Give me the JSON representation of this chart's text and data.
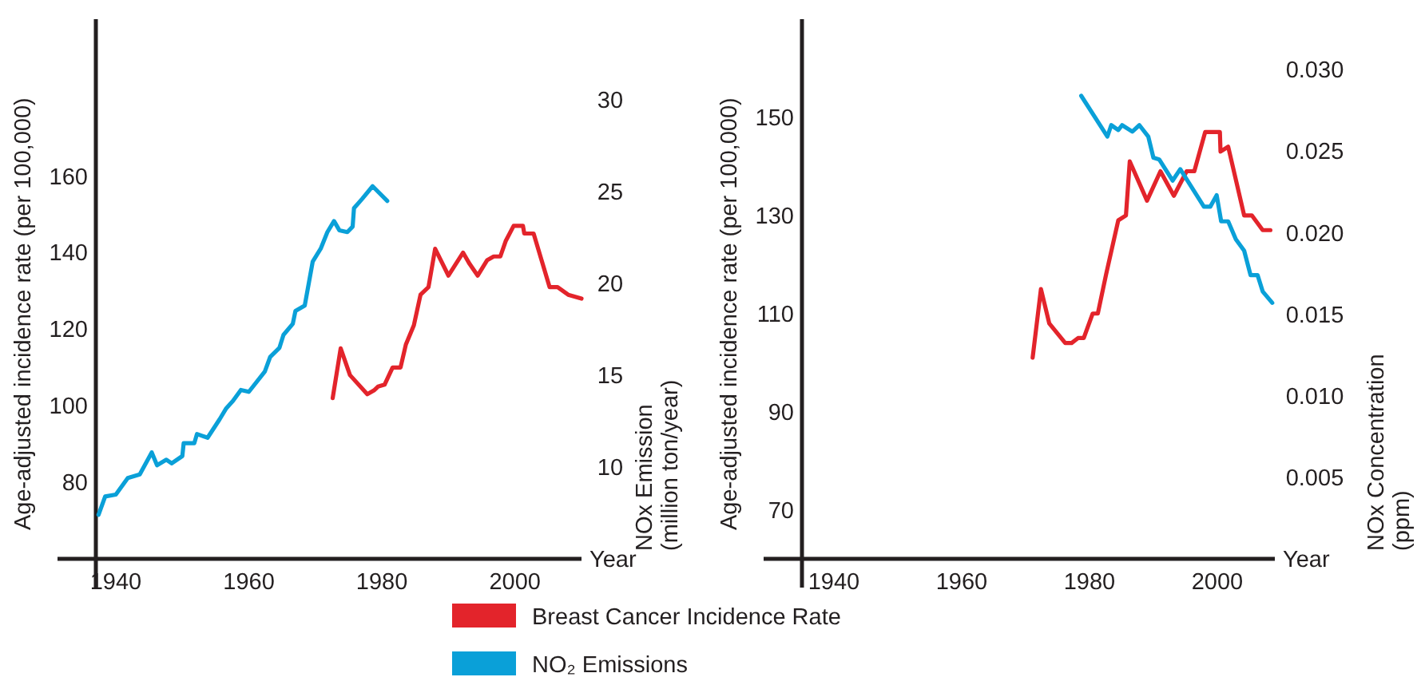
{
  "chart_data": [
    {
      "type": "line",
      "xlabel": "Year",
      "ylabel": "Age-adjusted incidence rate (per 100,000)",
      "y2label": "NOx Emission\n(million ton/year)",
      "xlim": [
        1937,
        2010
      ],
      "xticks": [
        1940,
        1960,
        1980,
        2000
      ],
      "ylim": [
        60,
        201
      ],
      "yticks": [
        80,
        100,
        120,
        140,
        160
      ],
      "y2lim": [
        5,
        34.4
      ],
      "y2ticks": [
        10,
        15,
        20,
        25,
        30
      ],
      "legend": "bottom",
      "grid": false,
      "series": [
        {
          "name": "Breast Cancer Incidence Rate",
          "color": "#e3242b",
          "x": [
            1972.6,
            1973.8,
            1975.2,
            1977.8,
            1978.8,
            1979.4,
            1980.4,
            1981.6,
            1982.8,
            1983.6,
            1984.8,
            1985.8,
            1987,
            1988,
            1990,
            1992.2,
            1993.2,
            1994.4,
            1995.8,
            1996.8,
            1997.8,
            1998.6,
            1999.8,
            2001.2,
            2001.4,
            2002.8,
            2004,
            2005.2,
            2006.4,
            2008,
            2010
          ],
          "values": [
            102,
            115,
            108,
            103,
            104,
            105,
            105.5,
            110,
            110,
            116,
            121,
            129,
            131,
            141,
            134,
            140,
            137,
            134,
            138,
            139,
            139,
            143,
            147,
            147,
            145,
            145,
            138,
            131,
            131,
            129,
            128
          ]
        },
        {
          "name": "NO₂ Emissions",
          "color": "#0aa0d8",
          "axis": "y2",
          "x": [
            1937.4,
            1938.4,
            1940,
            1941.8,
            1943.6,
            1945.4,
            1946.2,
            1947.6,
            1948.4,
            1950,
            1950.2,
            1951.8,
            1952.2,
            1953.8,
            1955.6,
            1956.6,
            1957.6,
            1958.8,
            1960,
            1962.4,
            1963.2,
            1964.6,
            1965.2,
            1966.6,
            1967,
            1968.4,
            1969.6,
            1970.8,
            1971.8,
            1972.8,
            1973.6,
            1974.8,
            1975.6,
            1975.8,
            1977,
            1978.6,
            1980.8
          ],
          "values": [
            7.4,
            8.4,
            8.5,
            9.4,
            9.6,
            10.8,
            10.1,
            10.4,
            10.2,
            10.6,
            11.3,
            11.3,
            11.8,
            11.6,
            12.6,
            13.2,
            13.6,
            14.2,
            14.1,
            15.2,
            16,
            16.5,
            17.2,
            17.8,
            18.5,
            18.8,
            21.2,
            21.9,
            22.8,
            23.4,
            22.9,
            22.8,
            23.1,
            24.1,
            24.6,
            25.3,
            24.5
          ]
        }
      ]
    },
    {
      "type": "line",
      "xlabel": "Year",
      "ylabel": "Age-adjusted incidence rate (per 100,000)",
      "y2label": "NOx Concentration\n(ppm)",
      "xlim": [
        1935,
        2009
      ],
      "xticks": [
        1940,
        1960,
        1980,
        2000
      ],
      "ylim": [
        60,
        170
      ],
      "yticks": [
        70,
        90,
        110,
        130,
        150
      ],
      "y2lim": [
        0,
        0.0331
      ],
      "y2ticks": [
        {
          "value": 0.005,
          "label": "0.005"
        },
        {
          "value": 0.01,
          "label": "0.010"
        },
        {
          "value": 0.015,
          "label": "0.015"
        },
        {
          "value": 0.02,
          "label": "0.020"
        },
        {
          "value": 0.025,
          "label": "0.025"
        },
        {
          "value": 0.03,
          "label": "0.030"
        }
      ],
      "legend": "bottom",
      "grid": false,
      "series": [
        {
          "name": "Breast Cancer Incidence Rate",
          "color": "#e3242b",
          "x": [
            1971.1,
            1972.4,
            1973.7,
            1976.2,
            1977.2,
            1978.2,
            1979.1,
            1980.5,
            1981.3,
            1982.6,
            1984.5,
            1985.7,
            1986.3,
            1989,
            1991.1,
            1993.2,
            1995.2,
            1996.4,
            1998.1,
            2000.4,
            2000.5,
            2001.7,
            2004.2,
            2005.4,
            2007.1,
            2008.3
          ],
          "values": [
            101,
            115,
            108,
            104,
            104,
            105,
            105,
            110,
            110,
            118,
            129,
            130,
            141,
            133,
            139,
            134,
            139,
            139,
            147,
            147,
            143,
            144,
            130,
            130,
            127,
            127
          ]
        },
        {
          "name": "NO₂ Emissions",
          "color": "#0aa0d8",
          "axis": "y2",
          "x": [
            1978.7,
            1982.8,
            1983.4,
            1984.5,
            1985.1,
            1986.7,
            1987.8,
            1989.2,
            1990,
            1990.9,
            1993,
            1994.2,
            1997.9,
            1998.9,
            1999.9,
            2000.6,
            2001.7,
            2002.9,
            2004.2,
            2005.2,
            2006.3,
            2007.1,
            2008.6
          ],
          "values": [
            0.0284,
            0.0259,
            0.0266,
            0.0263,
            0.0266,
            0.0262,
            0.0266,
            0.0259,
            0.0246,
            0.0245,
            0.0232,
            0.0239,
            0.0216,
            0.0216,
            0.0223,
            0.0207,
            0.0207,
            0.0196,
            0.0189,
            0.0174,
            0.0174,
            0.0164,
            0.0157
          ]
        }
      ]
    }
  ]
}
